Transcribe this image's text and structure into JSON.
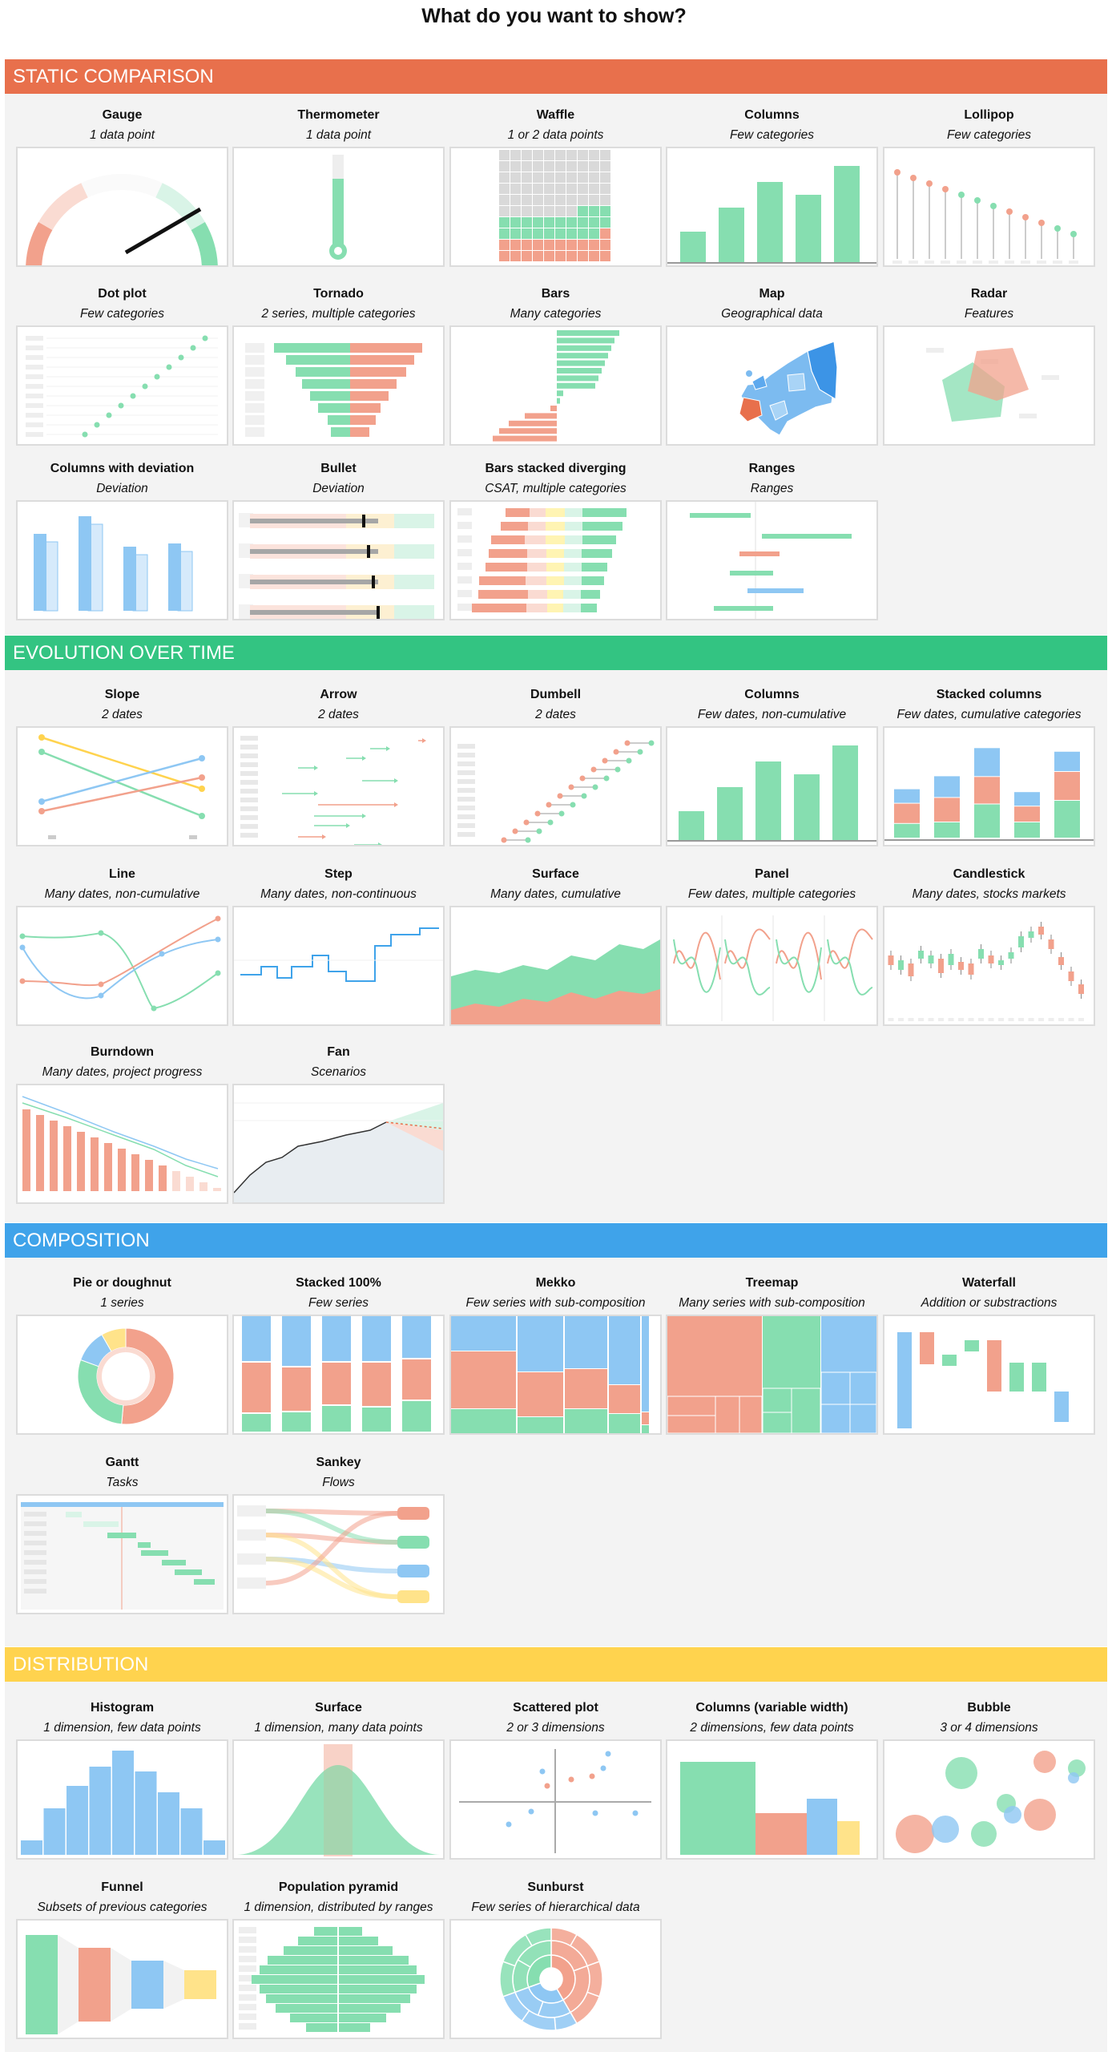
{
  "page_title": "What do you want to show?",
  "colors": {
    "orange": "#E8704C",
    "green": "#33C482",
    "blue": "#3FA3EA",
    "yellow": "#FFD34E",
    "salmon": "#F2A18C",
    "mint": "#86DEB0",
    "sky": "#8EC7F3",
    "pale_yellow": "#FFE38A"
  },
  "sections": {
    "static": {
      "label": "STATIC COMPARISON",
      "cards": [
        {
          "title": "Gauge",
          "subtitle": "1 data point",
          "icon": "gauge-chart"
        },
        {
          "title": "Thermometer",
          "subtitle": "1 data point",
          "icon": "thermometer-chart"
        },
        {
          "title": "Waffle",
          "subtitle": "1 or 2 data points",
          "icon": "waffle-chart"
        },
        {
          "title": "Columns",
          "subtitle": "Few categories",
          "icon": "columns-chart"
        },
        {
          "title": "Lollipop",
          "subtitle": "Few categories",
          "icon": "lollipop-chart"
        },
        {
          "title": "Dot plot",
          "subtitle": "Few categories",
          "icon": "dot-plot-chart"
        },
        {
          "title": "Tornado",
          "subtitle": "2 series, multiple categories",
          "icon": "tornado-chart"
        },
        {
          "title": "Bars",
          "subtitle": "Many categories",
          "icon": "bars-chart"
        },
        {
          "title": "Map",
          "subtitle": "Geographical data",
          "icon": "map-chart"
        },
        {
          "title": "Radar",
          "subtitle": "Features",
          "icon": "radar-chart"
        },
        {
          "title": "Columns with deviation",
          "subtitle": "Deviation",
          "icon": "columns-deviation-chart"
        },
        {
          "title": "Bullet",
          "subtitle": "Deviation",
          "icon": "bullet-chart"
        },
        {
          "title": "Bars stacked diverging",
          "subtitle": "CSAT, multiple categories",
          "icon": "diverging-bars-chart"
        },
        {
          "title": "Ranges",
          "subtitle": "Ranges",
          "icon": "ranges-chart"
        }
      ]
    },
    "evolution": {
      "label": "EVOLUTION OVER TIME",
      "cards": [
        {
          "title": "Slope",
          "subtitle": "2 dates",
          "icon": "slope-chart"
        },
        {
          "title": "Arrow",
          "subtitle": "2 dates",
          "icon": "arrow-chart"
        },
        {
          "title": "Dumbell",
          "subtitle": "2 dates",
          "icon": "dumbbell-chart"
        },
        {
          "title": "Columns",
          "subtitle": "Few dates, non-cumulative",
          "icon": "columns-time-chart"
        },
        {
          "title": "Stacked columns",
          "subtitle": "Few dates, cumulative categories",
          "icon": "stacked-columns-chart"
        },
        {
          "title": "Line",
          "subtitle": "Many dates, non-cumulative",
          "icon": "line-chart"
        },
        {
          "title": "Step",
          "subtitle": "Many dates, non-continuous",
          "icon": "step-chart"
        },
        {
          "title": "Surface",
          "subtitle": "Many dates, cumulative",
          "icon": "surface-chart"
        },
        {
          "title": "Panel",
          "subtitle": "Few dates, multiple categories",
          "icon": "panel-chart"
        },
        {
          "title": "Candlestick",
          "subtitle": "Many dates, stocks markets",
          "icon": "candlestick-chart"
        },
        {
          "title": "Burndown",
          "subtitle": "Many dates, project progress",
          "icon": "burndown-chart"
        },
        {
          "title": "Fan",
          "subtitle": "Scenarios",
          "icon": "fan-chart"
        }
      ]
    },
    "composition": {
      "label": "COMPOSITION",
      "cards": [
        {
          "title": "Pie or doughnut",
          "subtitle": "1 series",
          "icon": "doughnut-chart"
        },
        {
          "title": "Stacked 100%",
          "subtitle": "Few series",
          "icon": "stacked-100-chart"
        },
        {
          "title": "Mekko",
          "subtitle": "Few series with sub-composition",
          "icon": "mekko-chart"
        },
        {
          "title": "Treemap",
          "subtitle": "Many series with sub-composition",
          "icon": "treemap-chart"
        },
        {
          "title": "Waterfall",
          "subtitle": "Addition or substractions",
          "icon": "waterfall-chart"
        },
        {
          "title": "Gantt",
          "subtitle": "Tasks",
          "icon": "gantt-chart"
        },
        {
          "title": "Sankey",
          "subtitle": "Flows",
          "icon": "sankey-chart"
        }
      ]
    },
    "distribution": {
      "label": "DISTRIBUTION",
      "cards": [
        {
          "title": "Histogram",
          "subtitle": "1 dimension, few data points",
          "icon": "histogram-chart"
        },
        {
          "title": "Surface",
          "subtitle": "1 dimension, many data points",
          "icon": "density-surface-chart"
        },
        {
          "title": "Scattered plot",
          "subtitle": "2 or 3 dimensions",
          "icon": "scatter-chart"
        },
        {
          "title": "Columns (variable width)",
          "subtitle": "2 dimensions, few data points",
          "icon": "variable-width-columns-chart"
        },
        {
          "title": "Bubble",
          "subtitle": "3 or 4 dimensions",
          "icon": "bubble-chart"
        },
        {
          "title": "Funnel",
          "subtitle": "Subsets of previous categories",
          "icon": "funnel-chart"
        },
        {
          "title": "Population pyramid",
          "subtitle": "1 dimension, distributed by ranges",
          "icon": "population-pyramid-chart"
        },
        {
          "title": "Sunburst",
          "subtitle": "Few series of hierarchical data",
          "icon": "sunburst-chart"
        }
      ]
    }
  }
}
